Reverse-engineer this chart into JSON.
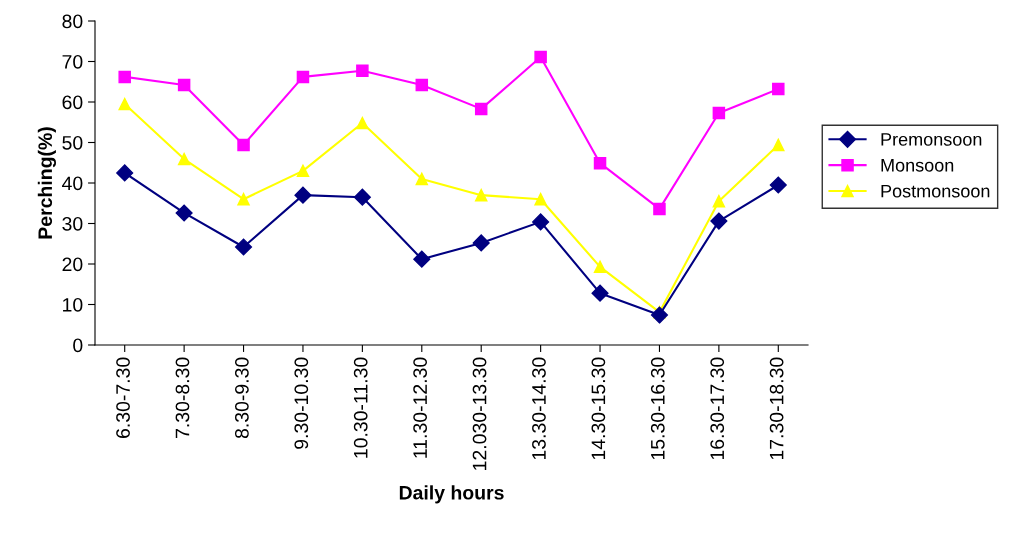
{
  "chart_data": {
    "type": "line",
    "xlabel": "Daily hours",
    "ylabel": "Perching(%)",
    "categories": [
      "6.30-7.30",
      "7.30-8.30",
      "8.30-9.30",
      "9.30-10.30",
      "10.30-11.30",
      "11.30-12.30",
      "12.030-13.30",
      "13.30-14.30",
      "14.30-15.30",
      "15.30-16.30",
      "16.30-17.30",
      "17.30-18.30"
    ],
    "series": [
      {
        "name": "Premonsoon",
        "color": "#000080",
        "marker": "diamond",
        "values": [
          42.5,
          32.6,
          24.2,
          37.0,
          36.5,
          21.2,
          25.2,
          30.4,
          12.8,
          7.4,
          30.6,
          39.5
        ]
      },
      {
        "name": "Monsoon",
        "color": "#ff00ff",
        "marker": "square",
        "values": [
          66.2,
          64.2,
          49.4,
          66.2,
          67.7,
          64.2,
          58.3,
          71.1,
          44.9,
          33.6,
          57.3,
          63.2
        ]
      },
      {
        "name": "Postmonsoon",
        "color": "#ffff00",
        "marker": "triangle",
        "values": [
          59.5,
          45.9,
          36.0,
          43.0,
          54.8,
          41.0,
          37.0,
          36.0,
          19.3,
          8.1,
          35.5,
          49.4
        ]
      }
    ],
    "ylim": [
      0,
      80
    ],
    "yticks": [
      0,
      10,
      20,
      30,
      40,
      50,
      60,
      70,
      80
    ],
    "grid": false,
    "legend": "right",
    "line_style": "solid"
  }
}
